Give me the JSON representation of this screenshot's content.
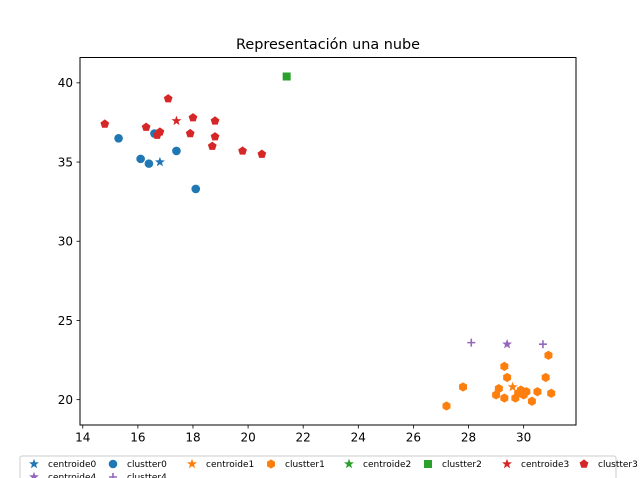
{
  "chart_data": {
    "type": "scatter",
    "title": "Representación una nube",
    "xlabel": "",
    "ylabel": "",
    "xlim": [
      13.9,
      31.9
    ],
    "ylim": [
      18.4,
      41.6
    ],
    "xticks": [
      14,
      16,
      18,
      20,
      22,
      24,
      26,
      28,
      30
    ],
    "yticks": [
      20,
      25,
      30,
      35,
      40
    ],
    "grid": false,
    "legend_position": "bottom",
    "series": [
      {
        "name": "centroide0",
        "marker": "star",
        "color": "#1f77b4",
        "points": [
          [
            16.8,
            35.0
          ]
        ]
      },
      {
        "name": "clustter0",
        "marker": "circle",
        "color": "#1f77b4",
        "points": [
          [
            15.3,
            36.5
          ],
          [
            16.1,
            35.2
          ],
          [
            16.4,
            34.9
          ],
          [
            16.6,
            36.8
          ],
          [
            17.4,
            35.7
          ],
          [
            18.1,
            33.3
          ]
        ]
      },
      {
        "name": "centroide1",
        "marker": "star",
        "color": "#ff7f0e",
        "points": [
          [
            29.6,
            20.8
          ]
        ]
      },
      {
        "name": "clustter1",
        "marker": "hexagon",
        "color": "#ff7f0e",
        "points": [
          [
            27.2,
            19.6
          ],
          [
            27.8,
            20.8
          ],
          [
            29.0,
            20.3
          ],
          [
            29.1,
            20.7
          ],
          [
            29.3,
            20.1
          ],
          [
            29.3,
            22.1
          ],
          [
            29.4,
            21.4
          ],
          [
            29.7,
            20.1
          ],
          [
            29.8,
            20.4
          ],
          [
            29.9,
            20.6
          ],
          [
            30.0,
            20.3
          ],
          [
            30.1,
            20.5
          ],
          [
            30.3,
            19.9
          ],
          [
            30.5,
            20.5
          ],
          [
            30.8,
            21.4
          ],
          [
            30.9,
            22.8
          ],
          [
            31.0,
            20.4
          ]
        ]
      },
      {
        "name": "centroide2",
        "marker": "star",
        "color": "#2ca02c",
        "points": []
      },
      {
        "name": "clustter2",
        "marker": "square",
        "color": "#2ca02c",
        "points": [
          [
            21.4,
            40.4
          ]
        ]
      },
      {
        "name": "centroide3",
        "marker": "star",
        "color": "#d62728",
        "points": [
          [
            17.4,
            37.6
          ]
        ]
      },
      {
        "name": "clustter3",
        "marker": "pentagon",
        "color": "#d62728",
        "points": [
          [
            14.8,
            37.4
          ],
          [
            16.3,
            37.2
          ],
          [
            16.7,
            36.7
          ],
          [
            16.8,
            36.9
          ],
          [
            17.1,
            39.0
          ],
          [
            17.9,
            36.8
          ],
          [
            18.0,
            37.8
          ],
          [
            18.7,
            36.0
          ],
          [
            18.8,
            37.6
          ],
          [
            18.8,
            36.6
          ],
          [
            19.8,
            35.7
          ],
          [
            20.5,
            35.5
          ]
        ]
      },
      {
        "name": "centroide4",
        "marker": "star",
        "color": "#9467bd",
        "points": [
          [
            29.4,
            23.5
          ]
        ]
      },
      {
        "name": "clustter4",
        "marker": "plus",
        "color": "#9467bd",
        "points": [
          [
            28.1,
            23.6
          ],
          [
            30.7,
            23.5
          ]
        ]
      }
    ]
  }
}
